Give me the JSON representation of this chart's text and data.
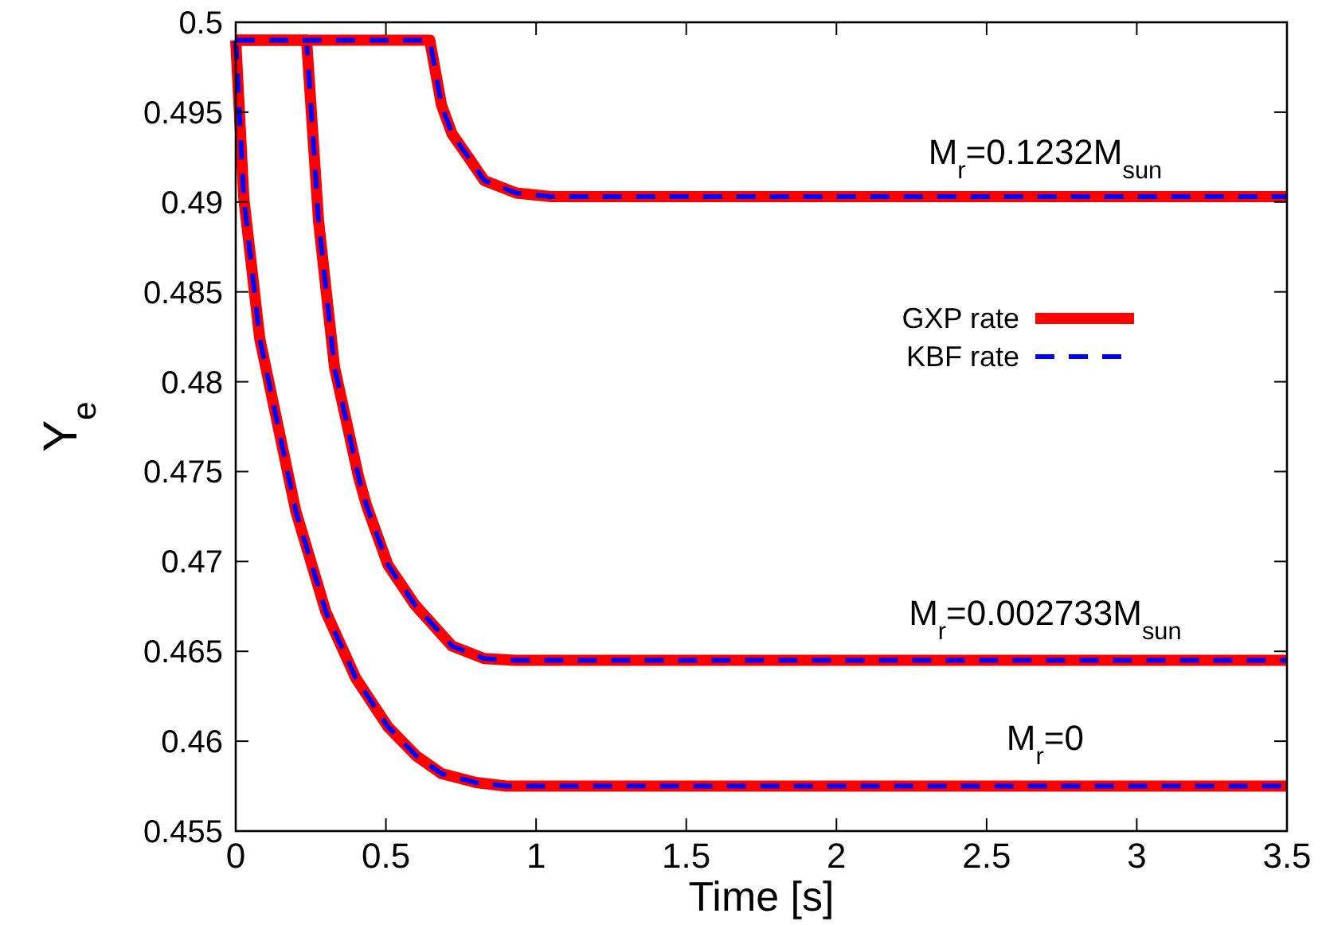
{
  "chart_data": {
    "type": "line",
    "xlabel": "Time [s]",
    "ylabel": "Y$_{e}$",
    "xlim": [
      0,
      3.5
    ],
    "ylim": [
      0.455,
      0.5
    ],
    "xticks": [
      0,
      0.5,
      1,
      1.5,
      2,
      2.5,
      3,
      3.5
    ],
    "yticks": [
      0.455,
      0.46,
      0.465,
      0.47,
      0.475,
      0.48,
      0.485,
      0.49,
      0.495,
      0.5
    ],
    "grid": false,
    "legend": "right",
    "series": [
      {
        "name": "GXP rate",
        "color": "#ff0000",
        "line_style": "solid",
        "x": [
          0,
          0.027,
          0.08,
          0.15,
          0.2,
          0.3,
          0.4,
          0.507,
          0.6,
          0.685,
          0.8,
          0.9,
          3.5
        ],
        "values": [
          0.499,
          0.4902,
          0.4824,
          0.4768,
          0.4728,
          0.4672,
          0.4635,
          0.4608,
          0.4592,
          0.4582,
          0.4577,
          0.4575,
          0.4575
        ]
      },
      {
        "name": "KBF rate",
        "color": "#0000ff",
        "line_style": "dashed",
        "x": [
          0,
          0.027,
          0.08,
          0.15,
          0.2,
          0.3,
          0.4,
          0.507,
          0.6,
          0.685,
          0.8,
          0.9,
          3.5
        ],
        "values": [
          0.499,
          0.4902,
          0.4824,
          0.4768,
          0.4728,
          0.4672,
          0.4635,
          0.4608,
          0.4592,
          0.4582,
          0.4577,
          0.4575,
          0.4575
        ]
      },
      {
        "color": "#ff0000",
        "line_style": "solid",
        "x": [
          0,
          0.236,
          0.276,
          0.329,
          0.409,
          0.436,
          0.507,
          0.596,
          0.72,
          0.827,
          0.93,
          3.5
        ],
        "values": [
          0.499,
          0.499,
          0.4889,
          0.4808,
          0.4747,
          0.4731,
          0.4698,
          0.4676,
          0.4653,
          0.4646,
          0.4645,
          0.4645
        ]
      },
      {
        "color": "#0000ff",
        "line_style": "dashed",
        "x": [
          0,
          0.236,
          0.276,
          0.329,
          0.409,
          0.436,
          0.507,
          0.596,
          0.72,
          0.827,
          0.93,
          3.5
        ],
        "values": [
          0.499,
          0.499,
          0.4889,
          0.4808,
          0.4747,
          0.4731,
          0.4698,
          0.4676,
          0.4653,
          0.4646,
          0.4645,
          0.4645
        ]
      },
      {
        "color": "#ff0000",
        "line_style": "solid",
        "x": [
          0,
          0.646,
          0.685,
          0.72,
          0.774,
          0.827,
          0.934,
          1.05,
          3.5
        ],
        "values": [
          0.499,
          0.499,
          0.4954,
          0.4938,
          0.4925,
          0.4912,
          0.4905,
          0.4903,
          0.4903
        ]
      },
      {
        "color": "#0000ff",
        "line_style": "dashed",
        "x": [
          0,
          0.646,
          0.685,
          0.72,
          0.774,
          0.827,
          0.934,
          1.05,
          3.5
        ],
        "values": [
          0.499,
          0.499,
          0.4954,
          0.4938,
          0.4925,
          0.4912,
          0.4905,
          0.4903,
          0.4903
        ]
      }
    ],
    "annotations": [
      "M$_{r}$=0.1232M$_{sun}$",
      "M$_{r}$=0.002733M$_{sun}$",
      "M$_{r}$=0"
    ]
  }
}
